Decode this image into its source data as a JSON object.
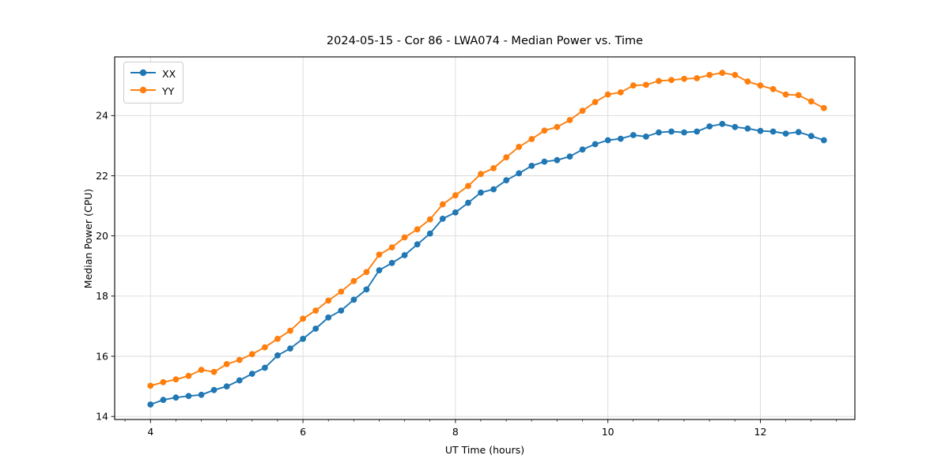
{
  "chart_data": {
    "type": "line",
    "title": "2024-05-15 - Cor 86 - LWA074 - Median Power vs. Time",
    "xlabel": "UT Time (hours)",
    "ylabel": "Median Power (CPU)",
    "xlim": [
      3.53,
      13.24
    ],
    "ylim": [
      13.9,
      25.95
    ],
    "xticks": [
      4,
      6,
      8,
      10,
      12
    ],
    "yticks": [
      14,
      16,
      18,
      20,
      22,
      24
    ],
    "x_minor_step": 0.3333,
    "y_minor_step": null,
    "grid": true,
    "legend_position": "upper left",
    "colors": {
      "series_xx": "#1f77b4",
      "series_yy": "#ff7f0e",
      "grid": "#d9d9d9",
      "spine": "#000000",
      "text": "#000000"
    },
    "x": [
      4.0,
      4.167,
      4.333,
      4.5,
      4.667,
      4.833,
      5.0,
      5.167,
      5.333,
      5.5,
      5.667,
      5.833,
      6.0,
      6.167,
      6.333,
      6.5,
      6.667,
      6.833,
      7.0,
      7.167,
      7.333,
      7.5,
      7.667,
      7.833,
      8.0,
      8.167,
      8.333,
      8.5,
      8.667,
      8.833,
      9.0,
      9.167,
      9.333,
      9.5,
      9.667,
      9.833,
      10.0,
      10.167,
      10.333,
      10.5,
      10.667,
      10.833,
      11.0,
      11.167,
      11.333,
      11.5,
      11.667,
      11.833,
      12.0,
      12.167,
      12.333,
      12.5,
      12.667,
      12.833
    ],
    "series": [
      {
        "name": "XX",
        "color": "#1f77b4",
        "values": [
          14.4,
          14.55,
          14.63,
          14.68,
          14.72,
          14.88,
          15.0,
          15.2,
          15.42,
          15.62,
          16.03,
          16.26,
          16.58,
          16.92,
          17.29,
          17.52,
          17.88,
          18.22,
          18.86,
          19.1,
          19.36,
          19.72,
          20.08,
          20.57,
          20.78,
          21.1,
          21.44,
          21.55,
          21.85,
          22.08,
          22.33,
          22.47,
          22.52,
          22.64,
          22.87,
          23.05,
          23.18,
          23.23,
          23.35,
          23.3,
          23.44,
          23.47,
          23.44,
          23.47,
          23.64,
          23.72,
          23.62,
          23.57,
          23.49,
          23.47,
          23.4,
          23.45,
          23.32,
          23.18
        ]
      },
      {
        "name": "YY",
        "color": "#ff7f0e",
        "values": [
          15.02,
          15.14,
          15.23,
          15.35,
          15.55,
          15.48,
          15.74,
          15.88,
          16.07,
          16.3,
          16.58,
          16.85,
          17.25,
          17.52,
          17.85,
          18.15,
          18.5,
          18.8,
          19.38,
          19.62,
          19.95,
          20.22,
          20.55,
          21.05,
          21.35,
          21.66,
          22.06,
          22.25,
          22.61,
          22.96,
          23.22,
          23.5,
          23.62,
          23.85,
          24.16,
          24.45,
          24.7,
          24.77,
          25.0,
          25.02,
          25.15,
          25.18,
          25.22,
          25.24,
          25.35,
          25.42,
          25.35,
          25.13,
          25.0,
          24.88,
          24.7,
          24.68,
          24.47,
          24.25
        ]
      }
    ]
  }
}
